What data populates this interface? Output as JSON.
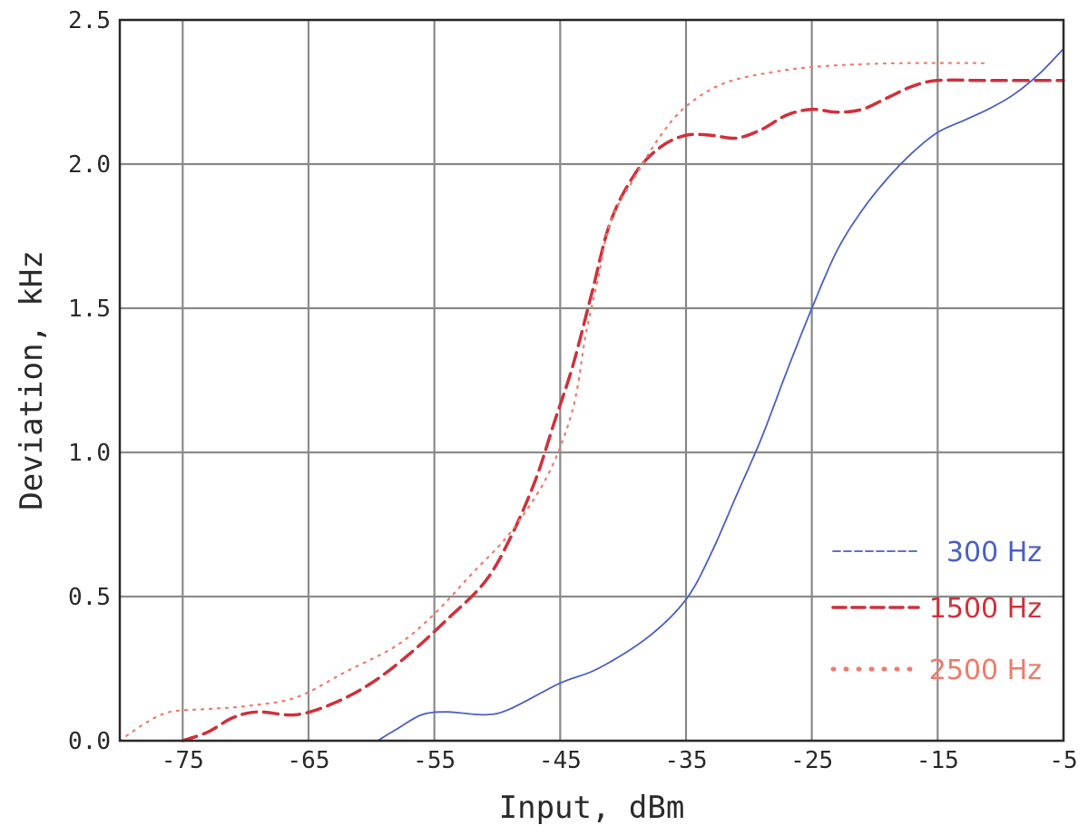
{
  "chart_data": {
    "type": "line",
    "title": "",
    "xlabel": "Input, dBm",
    "ylabel": "Deviation, kHz",
    "xlim": [
      -80,
      -5
    ],
    "ylim": [
      0,
      2.5
    ],
    "xticks": [
      -75,
      -65,
      -55,
      -45,
      -35,
      -25,
      -15,
      -5
    ],
    "yticks": [
      0.0,
      0.5,
      1.0,
      1.5,
      2.0,
      2.5
    ],
    "xtick_labels": [
      "-75",
      "-65",
      "-55",
      "-45",
      "-35",
      "-25",
      "-15",
      "-5"
    ],
    "ytick_labels": [
      "0.0",
      "0.5",
      "1.0",
      "1.5",
      "2.0",
      "2.5"
    ],
    "grid": true,
    "legend_position": "lower-right",
    "series": [
      {
        "name": "300 Hz",
        "color": "#4a5fc8",
        "style": "solid",
        "legend_style": "dashed",
        "points": [
          [
            -59.5,
            0.0
          ],
          [
            -58,
            0.04
          ],
          [
            -56,
            0.09
          ],
          [
            -54,
            0.1
          ],
          [
            -51,
            0.09
          ],
          [
            -49,
            0.11
          ],
          [
            -45,
            0.2
          ],
          [
            -42,
            0.25
          ],
          [
            -38,
            0.36
          ],
          [
            -35,
            0.49
          ],
          [
            -33,
            0.65
          ],
          [
            -31,
            0.85
          ],
          [
            -29,
            1.05
          ],
          [
            -27,
            1.28
          ],
          [
            -25,
            1.5
          ],
          [
            -23,
            1.7
          ],
          [
            -21,
            1.84
          ],
          [
            -19,
            1.95
          ],
          [
            -17,
            2.04
          ],
          [
            -15,
            2.11
          ],
          [
            -13,
            2.15
          ],
          [
            -11,
            2.19
          ],
          [
            -9,
            2.24
          ],
          [
            -7,
            2.31
          ],
          [
            -5,
            2.4
          ]
        ]
      },
      {
        "name": "1500 Hz",
        "color": "#d0303a",
        "style": "dashed",
        "legend_style": "dashed",
        "points": [
          [
            -75,
            0.0
          ],
          [
            -73,
            0.03
          ],
          [
            -71,
            0.08
          ],
          [
            -69,
            0.1
          ],
          [
            -66,
            0.09
          ],
          [
            -63,
            0.13
          ],
          [
            -60,
            0.2
          ],
          [
            -57,
            0.3
          ],
          [
            -54,
            0.42
          ],
          [
            -51,
            0.55
          ],
          [
            -49,
            0.7
          ],
          [
            -47,
            0.9
          ],
          [
            -45.5,
            1.1
          ],
          [
            -44,
            1.3
          ],
          [
            -42.5,
            1.55
          ],
          [
            -41,
            1.8
          ],
          [
            -39,
            1.97
          ],
          [
            -37,
            2.06
          ],
          [
            -35,
            2.1
          ],
          [
            -33,
            2.1
          ],
          [
            -31,
            2.09
          ],
          [
            -29,
            2.12
          ],
          [
            -27,
            2.17
          ],
          [
            -25,
            2.19
          ],
          [
            -23,
            2.18
          ],
          [
            -21,
            2.19
          ],
          [
            -19,
            2.23
          ],
          [
            -17,
            2.27
          ],
          [
            -15,
            2.29
          ],
          [
            -11,
            2.29
          ],
          [
            -5,
            2.29
          ]
        ]
      },
      {
        "name": "2500 Hz",
        "color": "#f07a6a",
        "style": "dotted",
        "legend_style": "dotted",
        "points": [
          [
            -80,
            0.0
          ],
          [
            -78,
            0.06
          ],
          [
            -76,
            0.1
          ],
          [
            -73,
            0.11
          ],
          [
            -70,
            0.12
          ],
          [
            -66,
            0.15
          ],
          [
            -62,
            0.24
          ],
          [
            -58,
            0.33
          ],
          [
            -55,
            0.44
          ],
          [
            -52,
            0.58
          ],
          [
            -49,
            0.72
          ],
          [
            -46,
            0.92
          ],
          [
            -44,
            1.15
          ],
          [
            -43,
            1.4
          ],
          [
            -42,
            1.6
          ],
          [
            -41,
            1.8
          ],
          [
            -39,
            1.96
          ],
          [
            -37,
            2.1
          ],
          [
            -35,
            2.2
          ],
          [
            -32,
            2.28
          ],
          [
            -28,
            2.32
          ],
          [
            -24,
            2.34
          ],
          [
            -18,
            2.35
          ],
          [
            -11,
            2.35
          ]
        ]
      }
    ]
  }
}
